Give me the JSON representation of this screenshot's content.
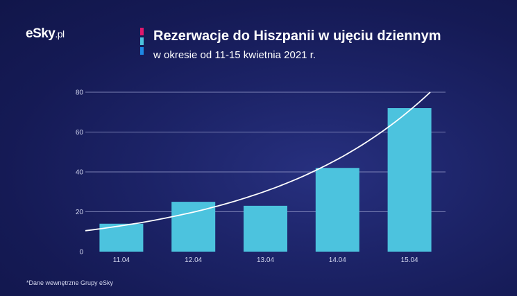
{
  "brand": {
    "logo_main": "eSky",
    "logo_tld": ".pl"
  },
  "header": {
    "title": "Rezerwacje do Hiszpanii w ujęciu dziennym",
    "subtitle": "w okresie od 11-15 kwietnia 2021 r."
  },
  "footnote": "*Dane wewnętrzne Grupy eSky",
  "colors": {
    "bar": "#4cc3de",
    "trend": "#ffffff",
    "gridline": "#8e93c4",
    "accent_pink": "#e0186c",
    "accent_cyan": "#4cc3de",
    "accent_blue": "#1e88e5"
  },
  "chart_data": {
    "type": "bar",
    "title": "Rezerwacje do Hiszpanii w ujęciu dziennym",
    "subtitle": "w okresie od 11-15 kwietnia 2021 r.",
    "xlabel": "",
    "ylabel": "",
    "categories": [
      "11.04",
      "12.04",
      "13.04",
      "14.04",
      "15.04"
    ],
    "values": [
      14,
      25,
      23,
      42,
      72
    ],
    "ylim": [
      0,
      80
    ],
    "yticks": [
      0,
      20,
      40,
      60,
      80
    ],
    "grid": true,
    "trendline": {
      "type": "exponential",
      "start_value": 10.5,
      "end_value": 80
    }
  }
}
